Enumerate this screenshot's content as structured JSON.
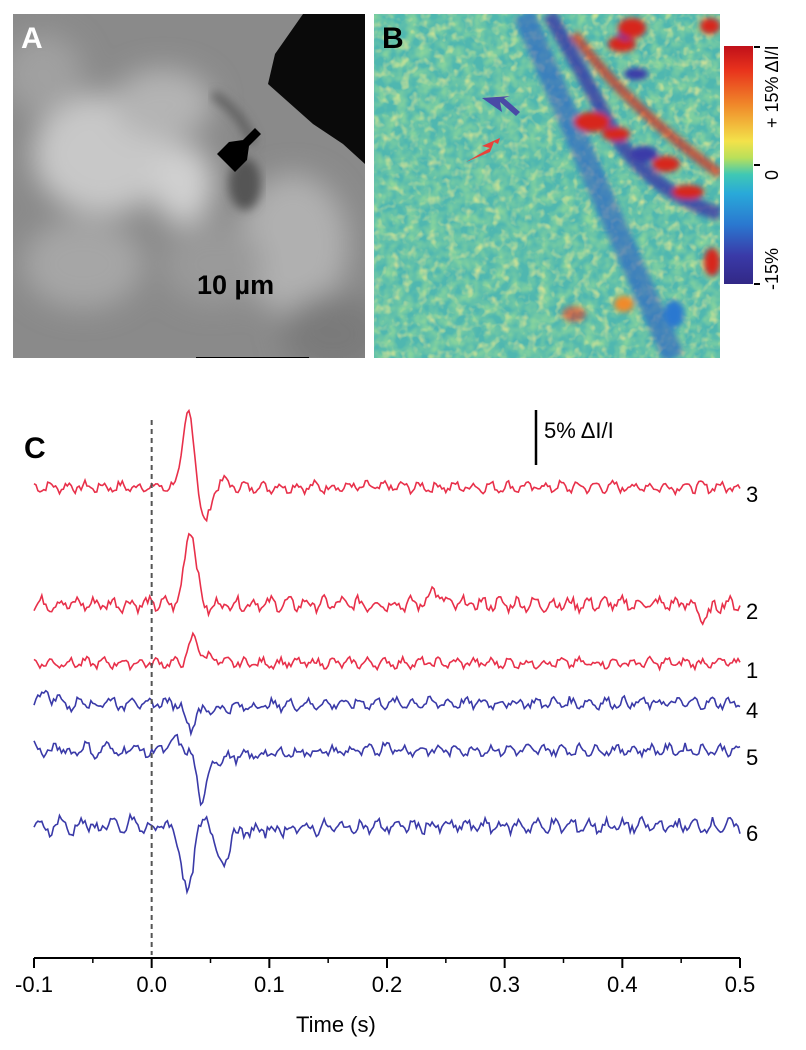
{
  "panels": {
    "a": {
      "letter": "A",
      "scalebar": "10 µm"
    },
    "b": {
      "letter": "B"
    },
    "c": {
      "letter": "C"
    }
  },
  "colorbar": {
    "top_label": "+ 15% ΔI/I",
    "mid_label": "0",
    "bottom_label": "-15%",
    "stops": [
      "#c0101a",
      "#f08a2a",
      "#f3e24a",
      "#3fc8b4",
      "#2a78d0",
      "#322886"
    ]
  },
  "arrows": {
    "panel_a": {
      "color": "#000000",
      "icon": "arrow-icon"
    },
    "panel_b_blue": {
      "color": "#4a4aa6",
      "icon": "arrow-icon"
    },
    "panel_b_red": {
      "color": "#e8423a",
      "icon": "arrow-icon"
    }
  },
  "chart_data": {
    "type": "line",
    "xlabel": "Time (s)",
    "ylabel": "",
    "xlim": [
      -0.1,
      0.5
    ],
    "xticks": [
      "-0.1",
      "0.0",
      "0.1",
      "0.2",
      "0.3",
      "0.4",
      "0.5"
    ],
    "scale_bar": "5% ΔI/I",
    "scale_bar_value_percent": 5,
    "stimulus_time": 0.0,
    "series": [
      {
        "name": "3",
        "color": "#e8304a",
        "baseline": 0,
        "features": [
          [
            0.031,
            6.7
          ],
          [
            0.046,
            -3.2
          ],
          [
            0.06,
            0.6
          ]
        ]
      },
      {
        "name": "2",
        "color": "#e8304a",
        "baseline": 0,
        "features": [
          [
            0.033,
            7.0
          ],
          [
            0.047,
            -0.4
          ],
          [
            0.24,
            1.3
          ],
          [
            0.47,
            -1.5
          ]
        ]
      },
      {
        "name": "1",
        "color": "#e8304a",
        "baseline": 0,
        "features": [
          [
            0.036,
            2.3
          ],
          [
            0.05,
            0.6
          ]
        ]
      },
      {
        "name": "4",
        "color": "#3a3aa8",
        "baseline": 0,
        "features": [
          [
            -0.09,
            1.2
          ],
          [
            0.033,
            -2.2
          ]
        ]
      },
      {
        "name": "5",
        "color": "#3a3aa8",
        "baseline": 0,
        "features": [
          [
            0.02,
            0.9
          ],
          [
            0.042,
            -3.8
          ],
          [
            0.2,
            0.5
          ]
        ]
      },
      {
        "name": "6",
        "color": "#3a3aa8",
        "baseline": 0,
        "features": [
          [
            0.03,
            -6.2
          ],
          [
            0.047,
            1.6
          ],
          [
            0.06,
            -2.8
          ]
        ]
      }
    ]
  }
}
